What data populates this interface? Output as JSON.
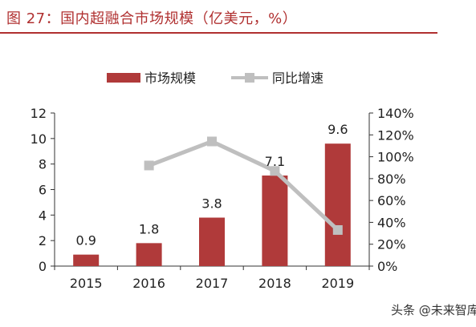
{
  "title": "图 27：国内超融合市场规模（亿美元，%）",
  "watermark": "头条 @未来智库",
  "colors": {
    "bar": "#b03a3a",
    "line": "#bfbfbf",
    "title": "#b03030"
  },
  "chart_data": {
    "type": "bar+line",
    "categories": [
      "2015",
      "2016",
      "2017",
      "2018",
      "2019"
    ],
    "series": [
      {
        "name": "市场规模",
        "type": "bar",
        "axis": "left",
        "values": [
          0.9,
          1.8,
          3.8,
          7.1,
          9.6
        ],
        "labels": [
          "0.9",
          "1.8",
          "3.8",
          "7.1",
          "9.6"
        ]
      },
      {
        "name": "同比增速",
        "type": "line",
        "axis": "right",
        "values": [
          null,
          92,
          114,
          87,
          33
        ]
      }
    ],
    "y_left": {
      "min": 0,
      "max": 12,
      "ticks": [
        0,
        2,
        4,
        6,
        8,
        10,
        12
      ],
      "tick_labels": [
        "0",
        "2",
        "4",
        "6",
        "8",
        "10",
        "12"
      ]
    },
    "y_right": {
      "min": 0,
      "max": 140,
      "ticks": [
        0,
        20,
        40,
        60,
        80,
        100,
        120,
        140
      ],
      "tick_labels": [
        "0%",
        "20%",
        "40%",
        "60%",
        "80%",
        "100%",
        "120%",
        "140%"
      ]
    },
    "legend_position": "top",
    "grid": false
  }
}
